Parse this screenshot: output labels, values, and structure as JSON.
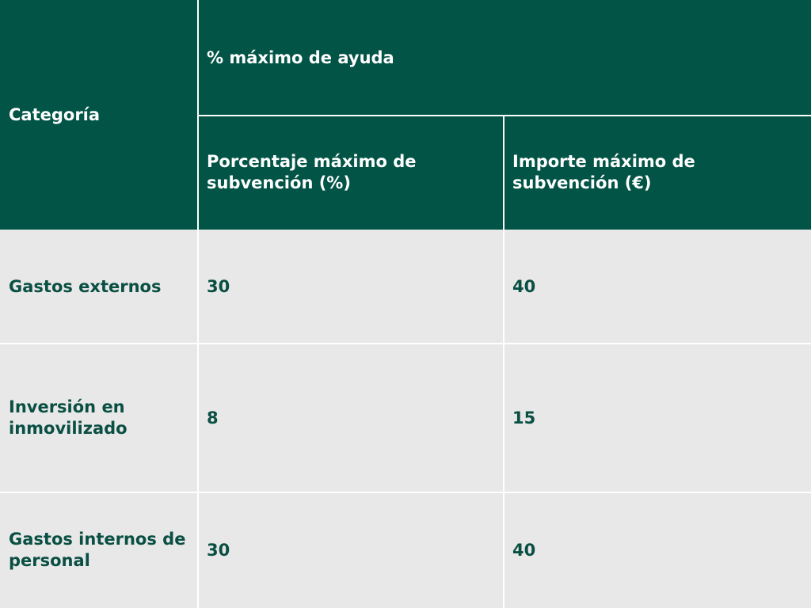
{
  "header": {
    "category_label": "Categoría",
    "group_label": "% máximo de ayuda",
    "percent_label": "Porcentaje máximo de subvención (%)",
    "amount_label": "Importe máximo de subvención (€)"
  },
  "rows": [
    {
      "category": "Gastos externos",
      "percent": "30",
      "amount": "40"
    },
    {
      "category": "Inversión en inmovilizado",
      "percent": "8",
      "amount": "15"
    },
    {
      "category": "Gastos internos de personal",
      "percent": "30",
      "amount": "40"
    }
  ],
  "colors": {
    "header_bg": "#025446",
    "body_bg": "#e8e8e8",
    "body_text": "#0a4f43",
    "grid": "#ffffff"
  }
}
